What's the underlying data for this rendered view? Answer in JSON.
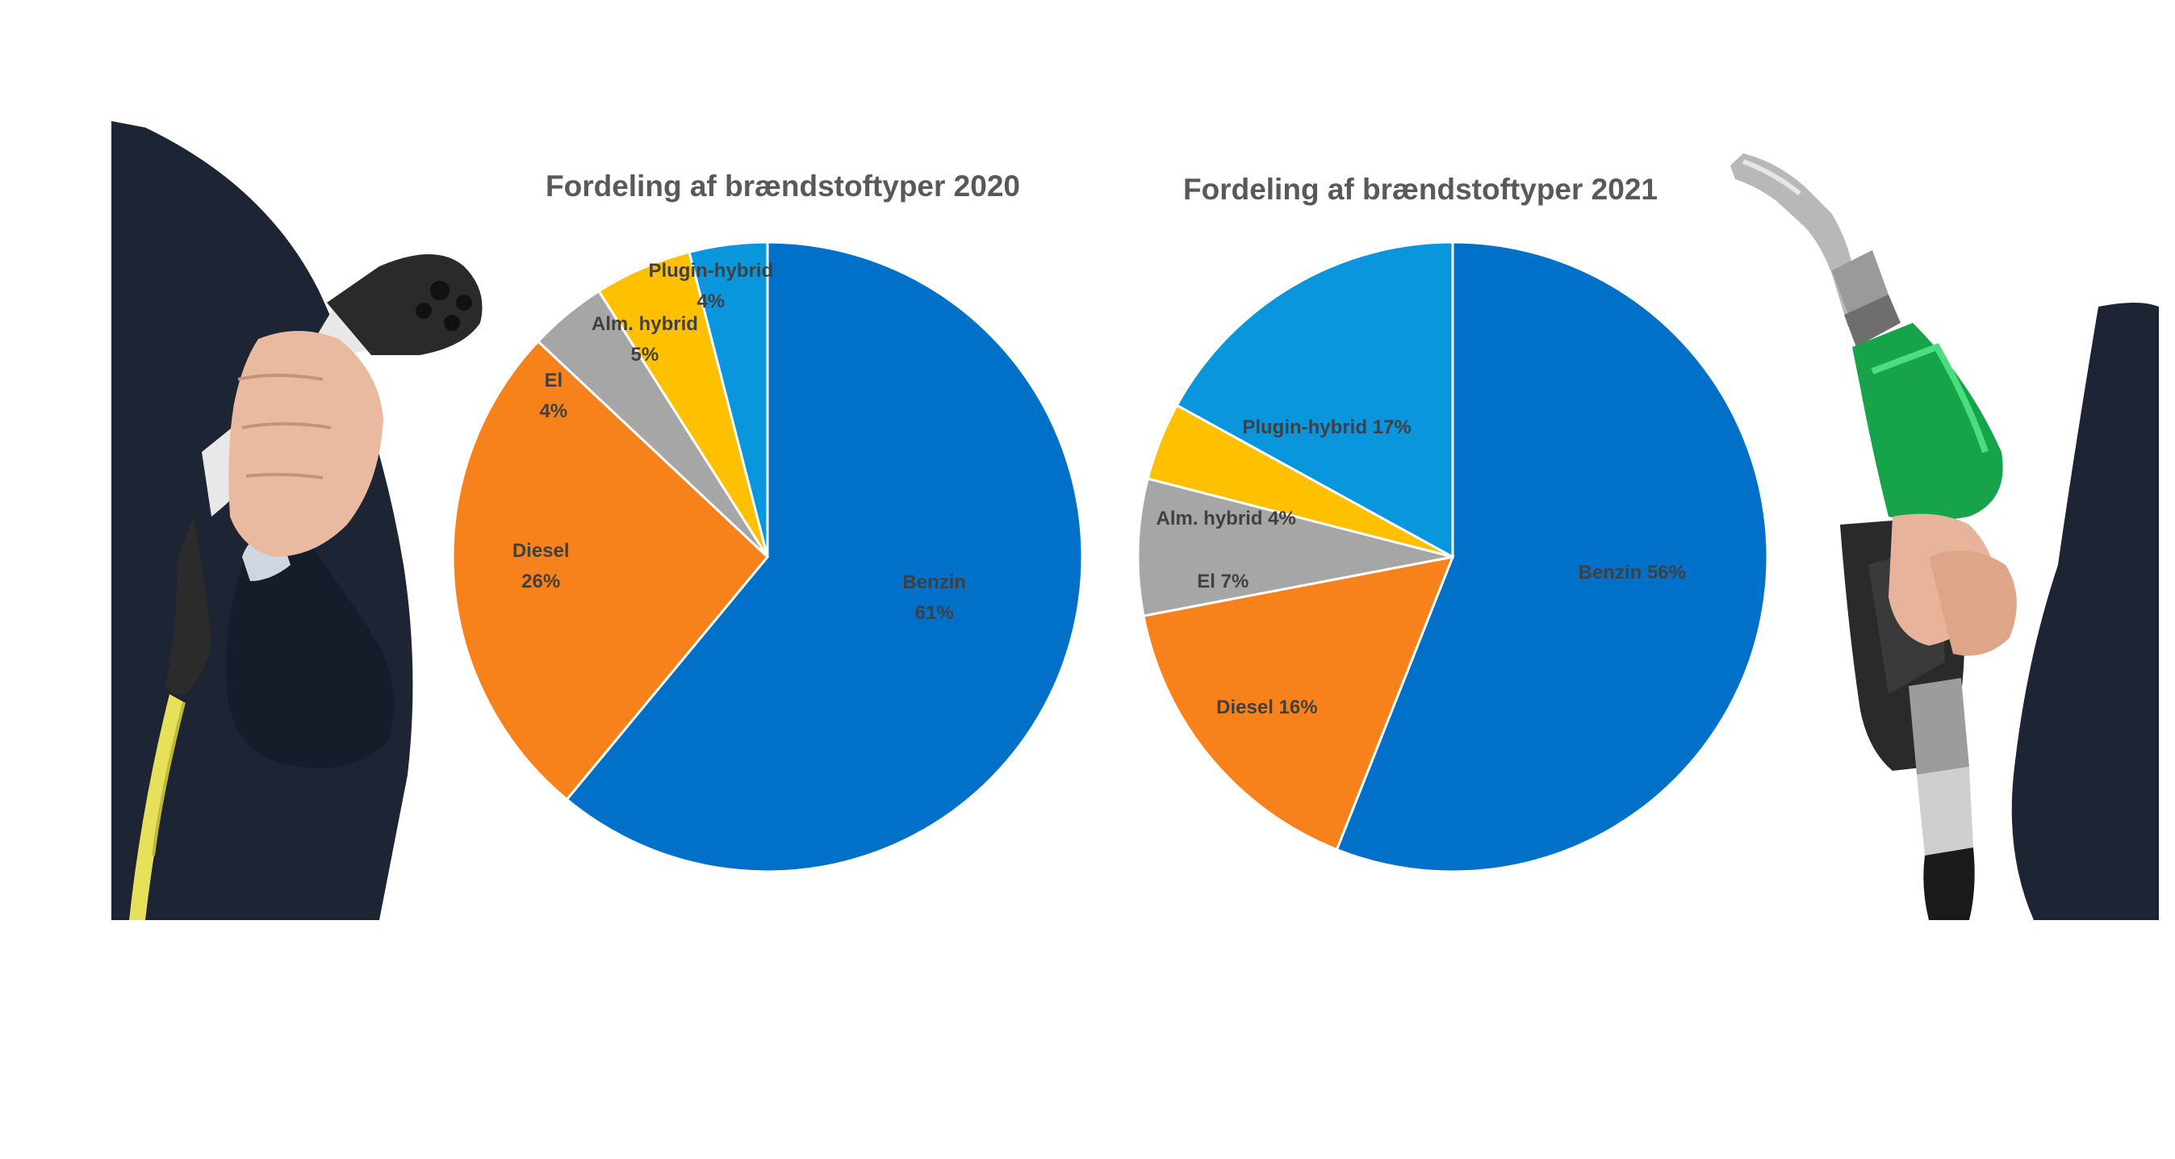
{
  "chart_data": [
    {
      "type": "pie",
      "title": "Fordeling af brændstoftyper 2020",
      "slices": [
        {
          "name": "Benzin",
          "label": "61%",
          "value": 61,
          "color": "#0070C9"
        },
        {
          "name": "Diesel",
          "label": "26%",
          "value": 26,
          "color": "#F7821B"
        },
        {
          "name": "El",
          "label": "4%",
          "value": 4,
          "color": "#A6A6A6"
        },
        {
          "name": "Alm. hybrid",
          "label": "5%",
          "value": 5,
          "color": "#FFC000"
        },
        {
          "name": "Plugin-hybrid",
          "label": "4%",
          "value": 4,
          "color": "#0A96DC"
        }
      ],
      "start_angle_deg": 0,
      "direction": "clockwise"
    },
    {
      "type": "pie",
      "title": "Fordeling af brændstoftyper 2021",
      "slices": [
        {
          "name": "Benzin",
          "label": "56%",
          "value": 56,
          "color": "#0070C9"
        },
        {
          "name": "Diesel",
          "label": "16%",
          "value": 16,
          "color": "#F7821B"
        },
        {
          "name": "El",
          "label": "7%",
          "value": 7,
          "color": "#A6A6A6"
        },
        {
          "name": "Alm. hybrid",
          "label": "4%",
          "value": 4,
          "color": "#FFC000"
        },
        {
          "name": "Plugin-hybrid",
          "label": "17%",
          "value": 17,
          "color": "#0A96DC"
        }
      ],
      "start_angle_deg": 0,
      "direction": "clockwise"
    }
  ],
  "photos": [
    {
      "icon": "ev-charging-plug-photo"
    },
    {
      "icon": "fuel-pump-nozzle-photo"
    }
  ]
}
